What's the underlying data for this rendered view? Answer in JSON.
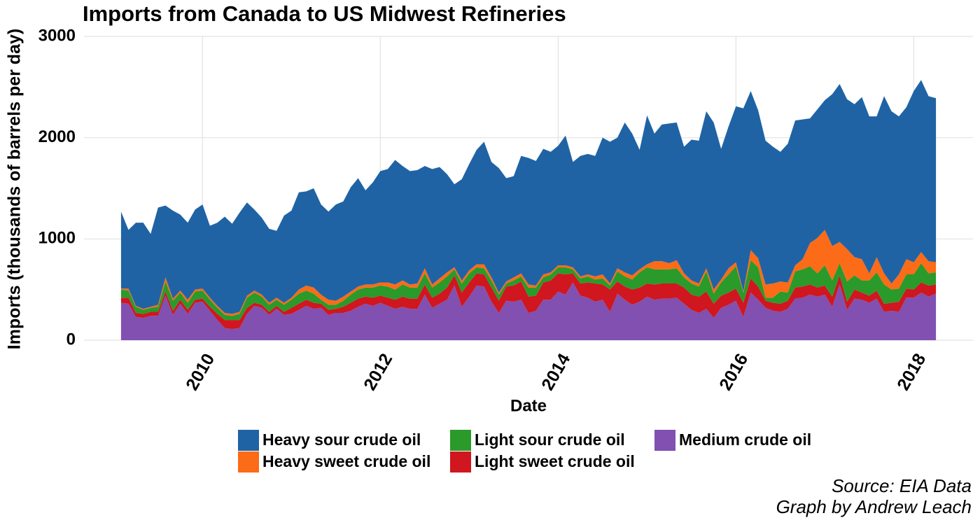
{
  "chart_data": {
    "type": "stacked_area",
    "title": "Imports from Canada to US Midwest Refineries",
    "x_label": "Date",
    "y_label": "Imports (thousands of barrels per day)",
    "annotations": [
      "Source: EIA Data",
      "Graph by Andrew Leach"
    ],
    "grid": true,
    "legend": "bottom",
    "xlim": [
      "2008-09",
      "2018-09"
    ],
    "xticks": [
      {
        "value": "2010-01",
        "label": "2010"
      },
      {
        "value": "2012-01",
        "label": "2012"
      },
      {
        "value": "2014-01",
        "label": "2014"
      },
      {
        "value": "2016-01",
        "label": "2016"
      },
      {
        "value": "2018-01",
        "label": "2018"
      }
    ],
    "ylim": [
      0,
      3000
    ],
    "yticks": [
      0,
      1000,
      2000,
      3000
    ],
    "x": [
      "2009-02",
      "2009-03",
      "2009-04",
      "2009-05",
      "2009-06",
      "2009-07",
      "2009-08",
      "2009-09",
      "2009-10",
      "2009-11",
      "2009-12",
      "2010-01",
      "2010-02",
      "2010-03",
      "2010-04",
      "2010-05",
      "2010-06",
      "2010-07",
      "2010-08",
      "2010-09",
      "2010-10",
      "2010-11",
      "2010-12",
      "2011-01",
      "2011-02",
      "2011-03",
      "2011-04",
      "2011-05",
      "2011-06",
      "2011-07",
      "2011-08",
      "2011-09",
      "2011-10",
      "2011-11",
      "2011-12",
      "2012-01",
      "2012-02",
      "2012-03",
      "2012-04",
      "2012-05",
      "2012-06",
      "2012-07",
      "2012-08",
      "2012-09",
      "2012-10",
      "2012-11",
      "2012-12",
      "2013-01",
      "2013-02",
      "2013-03",
      "2013-04",
      "2013-05",
      "2013-06",
      "2013-07",
      "2013-08",
      "2013-09",
      "2013-10",
      "2013-11",
      "2013-12",
      "2014-01",
      "2014-02",
      "2014-03",
      "2014-04",
      "2014-05",
      "2014-06",
      "2014-07",
      "2014-08",
      "2014-09",
      "2014-10",
      "2014-11",
      "2014-12",
      "2015-01",
      "2015-02",
      "2015-03",
      "2015-04",
      "2015-05",
      "2015-06",
      "2015-07",
      "2015-08",
      "2015-09",
      "2015-10",
      "2015-11",
      "2015-12",
      "2016-01",
      "2016-02",
      "2016-03",
      "2016-04",
      "2016-05",
      "2016-06",
      "2016-07",
      "2016-08",
      "2016-09",
      "2016-10",
      "2016-11",
      "2016-12",
      "2017-01",
      "2017-02",
      "2017-03",
      "2017-04",
      "2017-05",
      "2017-06",
      "2017-07",
      "2017-08",
      "2017-09",
      "2017-10",
      "2017-11",
      "2017-12",
      "2018-01",
      "2018-02",
      "2018-03",
      "2018-04"
    ],
    "series": [
      {
        "name": "Heavy sour crude oil",
        "color": "#1f63a5",
        "values": [
          760,
          580,
          820,
          850,
          720,
          960,
          710,
          870,
          750,
          760,
          790,
          830,
          710,
          820,
          950,
          890,
          980,
          920,
          800,
          760,
          730,
          660,
          860,
          860,
          960,
          930,
          980,
          890,
          870,
          950,
          940,
          1030,
          1070,
          930,
          1010,
          1100,
          1120,
          1230,
          1130,
          1120,
          1120,
          1010,
          1140,
          1100,
          970,
          820,
          1000,
          1050,
          1130,
          1210,
          1140,
          1230,
          1020,
          1000,
          1160,
          1250,
          1230,
          1240,
          1190,
          1180,
          1280,
          1040,
          1190,
          1190,
          1190,
          1350,
          1400,
          1290,
          1480,
          1400,
          1180,
          1470,
          1260,
          1350,
          1380,
          1360,
          1250,
          1390,
          1410,
          1550,
          1650,
          1290,
          1400,
          1540,
          1810,
          1570,
          1460,
          1420,
          1350,
          1280,
          1370,
          1430,
          1380,
          1230,
          1270,
          1280,
          1500,
          1560,
          1480,
          1510,
          1600,
          1550,
          1390,
          1750,
          1700,
          1560,
          1500,
          1690,
          1700,
          1630,
          1620
        ]
      },
      {
        "name": "Heavy sweet crude oil",
        "color": "#fc6b17",
        "values": [
          10,
          20,
          10,
          10,
          10,
          20,
          40,
          20,
          20,
          30,
          20,
          20,
          20,
          20,
          20,
          20,
          20,
          20,
          20,
          20,
          20,
          20,
          20,
          20,
          40,
          50,
          60,
          50,
          50,
          40,
          40,
          30,
          30,
          30,
          30,
          30,
          40,
          50,
          40,
          30,
          40,
          50,
          30,
          40,
          40,
          20,
          30,
          30,
          30,
          40,
          30,
          20,
          20,
          30,
          30,
          30,
          20,
          30,
          20,
          20,
          20,
          20,
          20,
          20,
          30,
          40,
          20,
          30,
          40,
          40,
          30,
          30,
          80,
          80,
          60,
          80,
          40,
          30,
          30,
          30,
          40,
          30,
          60,
          40,
          10,
          100,
          90,
          130,
          140,
          100,
          100,
          60,
          100,
          230,
          350,
          350,
          340,
          210,
          320,
          180,
          210,
          70,
          150,
          110,
          60,
          140,
          150,
          120,
          110,
          120,
          100
        ]
      },
      {
        "name": "Light sour crude oil",
        "color": "#2a9a2a",
        "values": [
          80,
          70,
          60,
          40,
          40,
          50,
          100,
          100,
          70,
          70,
          80,
          80,
          70,
          60,
          50,
          40,
          60,
          100,
          100,
          80,
          70,
          60,
          70,
          80,
          100,
          90,
          90,
          40,
          50,
          40,
          60,
          80,
          90,
          90,
          100,
          100,
          110,
          100,
          120,
          110,
          110,
          110,
          100,
          110,
          110,
          60,
          90,
          90,
          60,
          60,
          70,
          60,
          30,
          50,
          50,
          90,
          80,
          50,
          60,
          60,
          70,
          40,
          50,
          60,
          40,
          60,
          40,
          100,
          100,
          100,
          150,
          160,
          150,
          140,
          140,
          150,
          100,
          110,
          100,
          200,
          100,
          130,
          180,
          220,
          100,
          180,
          190,
          30,
          50,
          120,
          80,
          160,
          170,
          180,
          140,
          200,
          160,
          120,
          200,
          140,
          120,
          150,
          180,
          190,
          130,
          130,
          140,
          150,
          190,
          120,
          120
        ]
      },
      {
        "name": "Light sweet crude oil",
        "color": "#d0161e",
        "values": [
          50,
          60,
          40,
          40,
          40,
          40,
          40,
          40,
          40,
          40,
          30,
          30,
          40,
          60,
          80,
          90,
          80,
          60,
          30,
          30,
          30,
          30,
          30,
          60,
          60,
          60,
          60,
          40,
          50,
          40,
          60,
          80,
          80,
          70,
          80,
          70,
          80,
          90,
          100,
          100,
          100,
          100,
          100,
          100,
          120,
          100,
          140,
          140,
          120,
          120,
          140,
          120,
          140,
          160,
          180,
          160,
          150,
          170,
          190,
          180,
          200,
          90,
          120,
          150,
          180,
          150,
          220,
          120,
          130,
          150,
          140,
          130,
          150,
          150,
          150,
          140,
          160,
          150,
          160,
          170,
          140,
          120,
          120,
          120,
          140,
          140,
          130,
          70,
          80,
          80,
          80,
          110,
          110,
          100,
          90,
          90,
          100,
          90,
          80,
          90,
          70,
          70,
          80,
          80,
          80,
          100,
          90,
          80,
          100,
          110,
          90
        ]
      },
      {
        "name": "Medium crude oil",
        "color": "#8150b0",
        "values": [
          370,
          360,
          230,
          220,
          240,
          240,
          440,
          250,
          360,
          260,
          370,
          380,
          290,
          200,
          120,
          110,
          120,
          260,
          340,
          320,
          250,
          310,
          250,
          260,
          300,
          340,
          310,
          320,
          250,
          270,
          270,
          290,
          330,
          360,
          340,
          370,
          340,
          310,
          330,
          310,
          310,
          450,
          320,
          360,
          400,
          540,
          330,
          430,
          540,
          530,
          380,
          270,
          390,
          380,
          400,
          270,
          290,
          400,
          400,
          480,
          450,
          570,
          440,
          420,
          380,
          400,
          280,
          460,
          400,
          350,
          380,
          430,
          400,
          410,
          410,
          420,
          360,
          300,
          270,
          310,
          220,
          320,
          350,
          390,
          230,
          470,
          400,
          320,
          290,
          280,
          310,
          410,
          420,
          450,
          430,
          450,
          330,
          550,
          300,
          410,
          400,
          370,
          410,
          280,
          290,
          280,
          420,
          420,
          470,
          430,
          460
        ]
      }
    ]
  }
}
